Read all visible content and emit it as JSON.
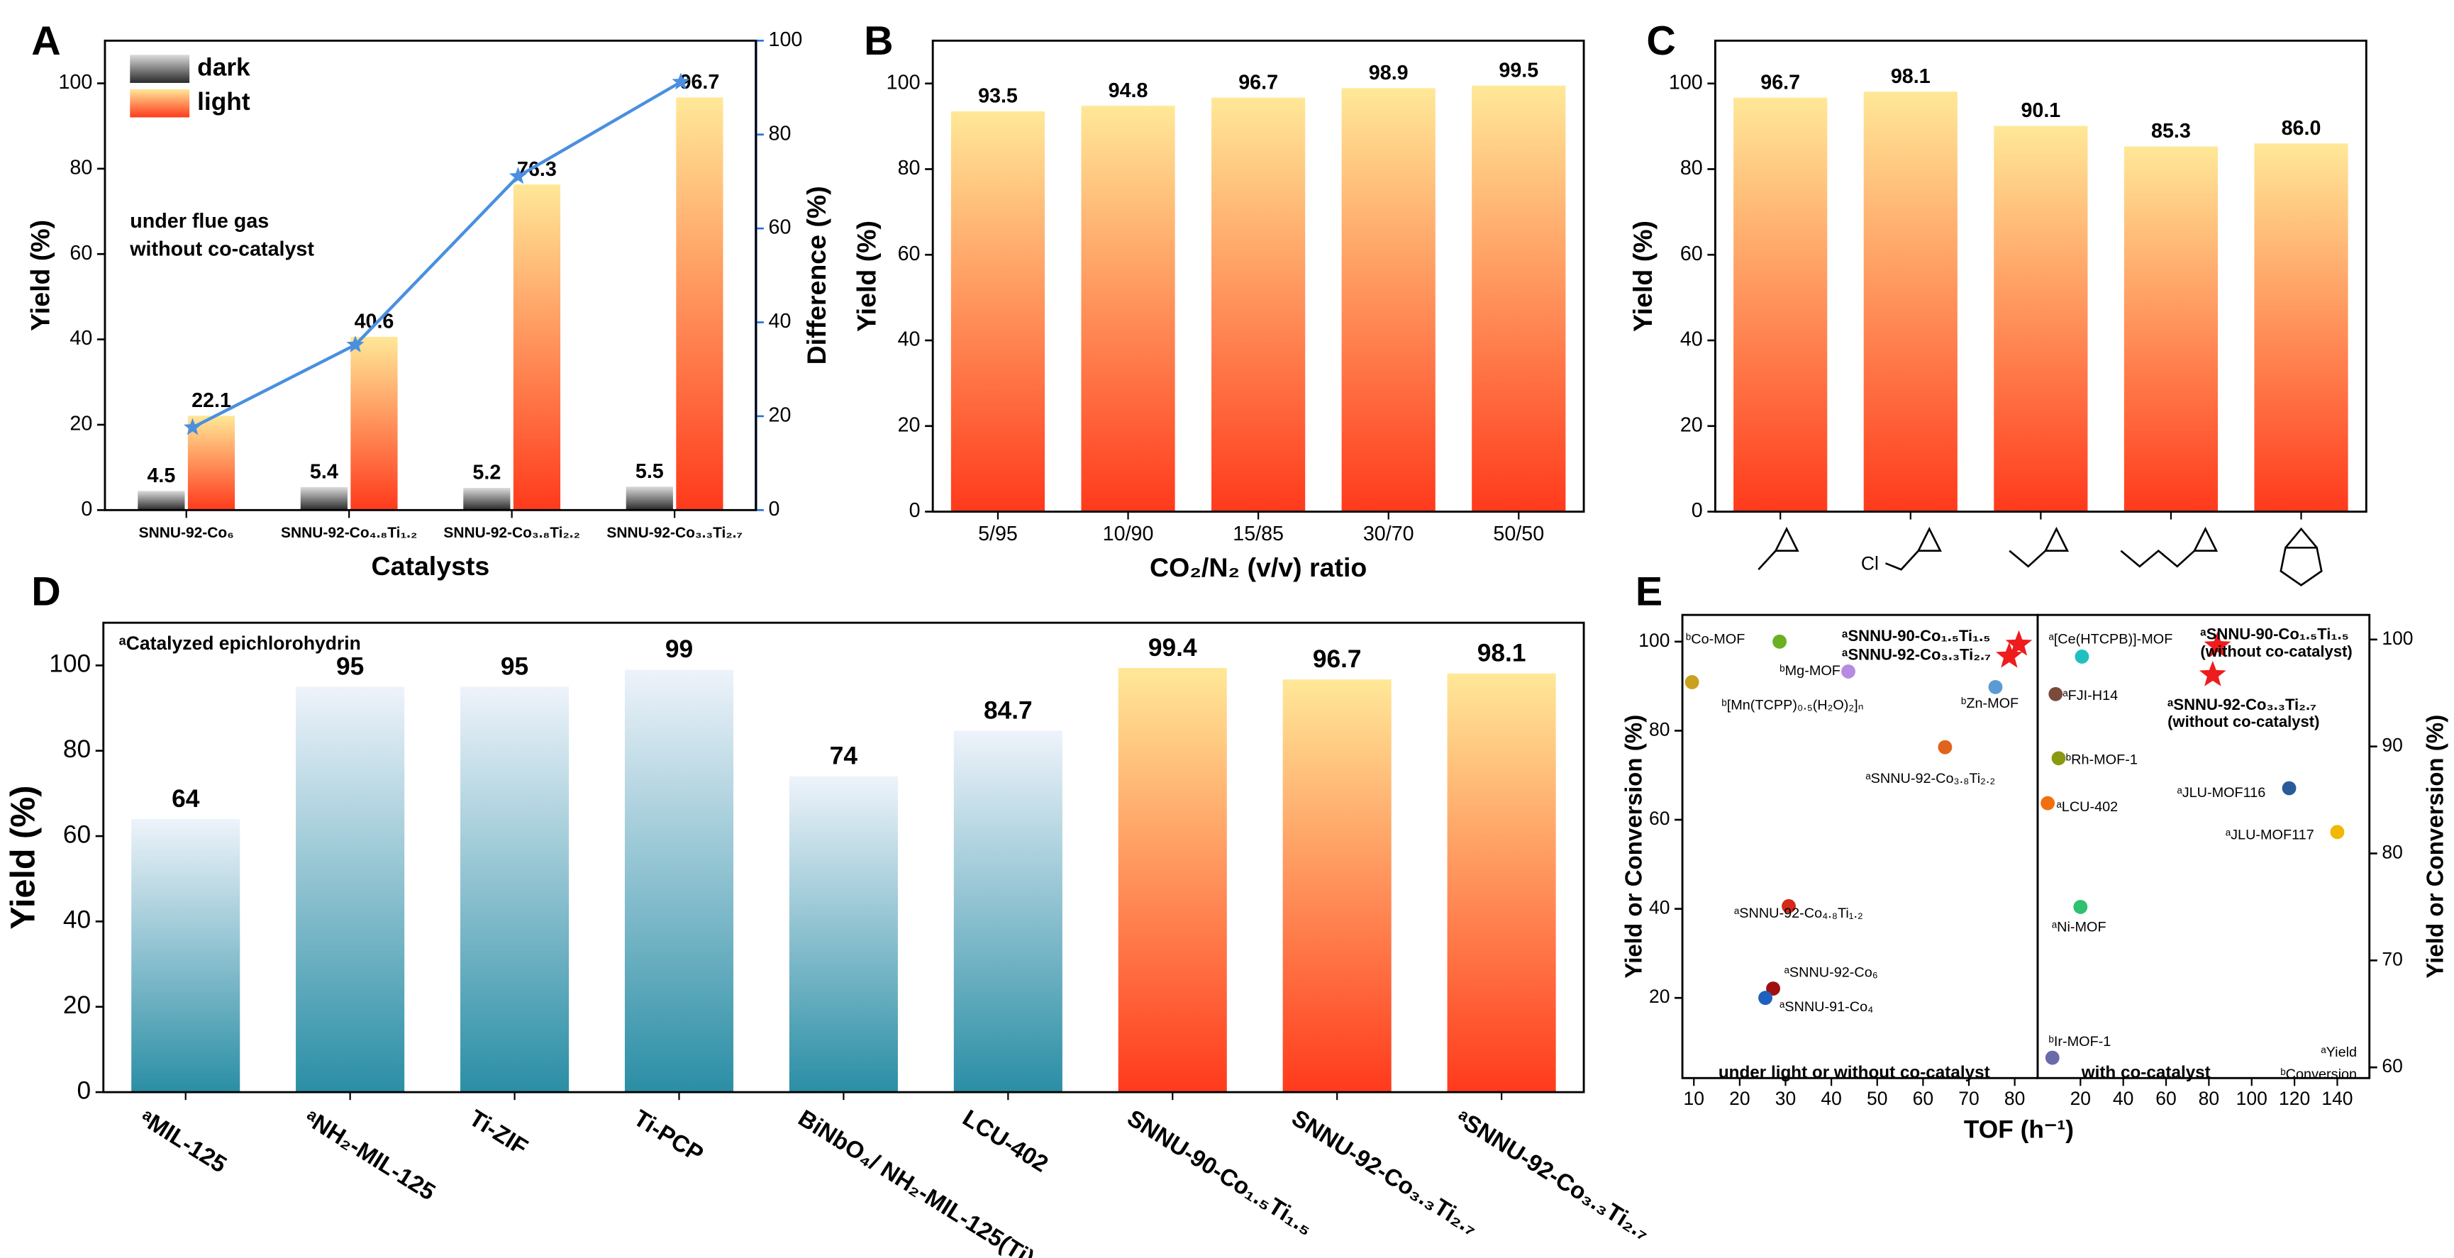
{
  "chart_data": [
    {
      "panel": "A",
      "type": "bar",
      "categories": [
        "SNNU-92-Co₆",
        "SNNU-92-Co₄.₈Ti₁.₂",
        "SNNU-92-Co₃.₈Ti₂.₂",
        "SNNU-92-Co₃.₃Ti₂.₇"
      ],
      "series": [
        {
          "name": "dark",
          "color": [
            "#2a2a2a",
            "#dcdcdc"
          ],
          "values": [
            4.5,
            5.4,
            5.2,
            5.5
          ]
        },
        {
          "name": "light",
          "color": [
            "#ff3a1c",
            "#ffe898"
          ],
          "values": [
            22.1,
            40.6,
            76.3,
            96.7
          ]
        },
        {
          "type": "line",
          "axis": "y2",
          "marker": "star",
          "color": "#4a8fe0",
          "values": [
            17.6,
            35.2,
            71.1,
            91.2
          ]
        }
      ],
      "ylim": [
        0,
        110
      ],
      "yticks": [
        0,
        20,
        40,
        60,
        80,
        100
      ],
      "y2lim": [
        0,
        100
      ],
      "y2ticks": [
        0,
        20,
        40,
        60,
        80,
        100
      ],
      "y2color": "#2a6fd0",
      "ylabel": "Yield (%)",
      "y2label": "Difference (%)",
      "xlabel": "Catalysts",
      "legend": "upper left",
      "annotations": [
        "under flue gas",
        "without co-catalyst"
      ]
    },
    {
      "panel": "B",
      "type": "bar",
      "categories": [
        "5/95",
        "10/90",
        "15/85",
        "30/70",
        "50/50"
      ],
      "values": [
        93.5,
        94.8,
        96.7,
        98.9,
        99.5
      ],
      "color": [
        "#ff3a1c",
        "#ffe898"
      ],
      "ylim": [
        0,
        110
      ],
      "yticks": [
        0,
        20,
        40,
        60,
        80,
        100
      ],
      "ylabel": "Yield (%)",
      "xlabel": "CO₂/N₂ (v/v) ratio"
    },
    {
      "panel": "C",
      "type": "bar",
      "categories": [
        null,
        null,
        null,
        null,
        null
      ],
      "values": [
        96.7,
        98.1,
        90.1,
        85.3,
        86.0
      ],
      "value_labels": [
        "96.7",
        "98.1",
        "90.1",
        "85.3",
        "86.0"
      ],
      "color": [
        "#ff3a1c",
        "#ffe898"
      ],
      "ylim": [
        0,
        110
      ],
      "yticks": [
        0,
        20,
        40,
        60,
        80,
        100
      ],
      "ylabel": "Yield (%)",
      "annotations": [
        "Cl"
      ]
    },
    {
      "panel": "D",
      "type": "bar",
      "categories": [
        "ᵃMIL-125",
        "ᵃNH₂-MIL-125",
        "Ti-ZIF",
        "Ti-PCP",
        "BiNbO₄/ NH₂-MIL-125(Ti)",
        "LCU-402",
        "SNNU-90-Co₁.₅Ti₁.₅",
        "SNNU-92-Co₃.₃Ti₂.₇",
        "ᵃSNNU-92-Co₃.₃Ti₂.₇"
      ],
      "values": [
        64,
        95,
        95,
        99,
        74,
        84.7,
        99.4,
        96.7,
        98.1
      ],
      "colors": [
        [
          "#2a8ea5",
          "#eef3fa"
        ],
        [
          "#2a8ea5",
          "#eef3fa"
        ],
        [
          "#2a8ea5",
          "#eef3fa"
        ],
        [
          "#2a8ea5",
          "#eef3fa"
        ],
        [
          "#2a8ea5",
          "#eef3fa"
        ],
        [
          "#2a8ea5",
          "#eef3fa"
        ],
        [
          "#ff3a1c",
          "#ffe898"
        ],
        [
          "#ff3a1c",
          "#ffe898"
        ],
        [
          "#ff3a1c",
          "#ffe898"
        ]
      ],
      "ylim": [
        0,
        110
      ],
      "yticks": [
        0,
        20,
        40,
        60,
        80,
        100
      ],
      "ylabel": "Yield (%)",
      "annotations": [
        "ᵃCatalyzed epichlorohydrin"
      ]
    },
    {
      "panel": "E",
      "type": "scatter",
      "xlim": [
        7.5,
        85
      ],
      "xticks": [
        10,
        20,
        30,
        40,
        50,
        60,
        70,
        80
      ],
      "ylim": [
        2,
        106
      ],
      "yticks": [
        20,
        40,
        60,
        80,
        100
      ],
      "ylabel": "Yield or Conversion (%)",
      "xlabel": "TOF (h⁻¹)",
      "points": [
        {
          "label": "ᵇCo-MOF",
          "x": 28.7,
          "y": 100,
          "color": "#6ab023",
          "marker": "circle"
        },
        {
          "label": "ᵇMg-MOF",
          "x": 43.7,
          "y": 93.3,
          "color": "#b78be0",
          "marker": "circle"
        },
        {
          "label": "ᵇ[Mn(TCPP)₀.₅(H₂O)₂]ₙ",
          "x": 9.6,
          "y": 90.9,
          "color": "#c9a020",
          "marker": "circle"
        },
        {
          "label": "ᵇZn-MOF",
          "x": 75.8,
          "y": 89.8,
          "color": "#5b9bd5",
          "marker": "circle"
        },
        {
          "label": "ᵃSNNU-90-Co₁.₅Ti₁.₅",
          "x": 80.9,
          "y": 99.4,
          "color": "#ee1c1c",
          "marker": "star"
        },
        {
          "label": "ᵃSNNU-92-Co₃.₃Ti₂.₇",
          "x": 78.8,
          "y": 96.7,
          "color": "#ee1c1c",
          "marker": "star"
        },
        {
          "label": "ᵃSNNU-92-Co₃.₈Ti₂.₂",
          "x": 64.8,
          "y": 76.3,
          "color": "#e0641e",
          "marker": "circle"
        },
        {
          "label": "ᵃSNNU-92-Co₄.₈Ti₁.₂",
          "x": 30.7,
          "y": 40.6,
          "color": "#d42a1a",
          "marker": "circle"
        },
        {
          "label": "ᵃSNNU-92-Co₆",
          "x": 27.3,
          "y": 22.1,
          "color": "#a01010",
          "marker": "circle"
        },
        {
          "label": "ᵃSNNU-91-Co₄",
          "x": 25.6,
          "y": 20.0,
          "color": "#2060c0",
          "marker": "circle"
        }
      ],
      "annotations": [
        "under light or without co-catalyst"
      ]
    },
    {
      "type": "scatter",
      "xlim": [
        0,
        155
      ],
      "xticks": [
        20,
        40,
        60,
        80,
        100,
        120,
        140
      ],
      "y2lim": [
        59,
        102.3
      ],
      "y2ticks": [
        60,
        70,
        80,
        90,
        100
      ],
      "y2label": "Yield or Conversion (%)",
      "points": [
        {
          "label": "ᵃ[Ce(HTCPB)]-MOF",
          "x": 20.7,
          "y": 98.4,
          "color": "#20c0c0",
          "marker": "circle"
        },
        {
          "label": "ᵃFJI-H14",
          "x": 8.4,
          "y": 94.9,
          "color": "#7a4a3a",
          "marker": "circle"
        },
        {
          "label": "ᵇRh-MOF-1",
          "x": 9.8,
          "y": 88.9,
          "color": "#8a9a10",
          "marker": "circle"
        },
        {
          "label": "ᵃLCU-402",
          "x": 4.7,
          "y": 84.7,
          "color": "#f07010",
          "marker": "circle"
        },
        {
          "label": "ᵃNi-MOF",
          "x": 20,
          "y": 75.0,
          "color": "#30c070",
          "marker": "circle"
        },
        {
          "label": "ᵇIr-MOF-1",
          "x": 6.9,
          "y": 60.9,
          "color": "#6a6aa8",
          "marker": "circle"
        },
        {
          "label": "ᵃJLU-MOF116",
          "x": 117.5,
          "y": 86.1,
          "color": "#2a5a9a",
          "marker": "circle"
        },
        {
          "label": "ᵃJLU-MOF117",
          "x": 140,
          "y": 82.0,
          "color": "#f0b800",
          "marker": "circle"
        },
        {
          "label": "ᵃSNNU-90-Co₁.₅Ti₁.₅",
          "note": "(without co-catalyst)",
          "x": 84,
          "y": 99.4,
          "color": "#ee1c1c",
          "marker": "star"
        },
        {
          "label": "ᵃSNNU-92-Co₃.₃Ti₂.₇",
          "note": "(without co-catalyst)",
          "x": 81.8,
          "y": 96.7,
          "color": "#ee1c1c",
          "marker": "star"
        }
      ],
      "annotations": [
        "with co-catalyst",
        "ᵃYield",
        "ᵇConversion"
      ]
    }
  ]
}
